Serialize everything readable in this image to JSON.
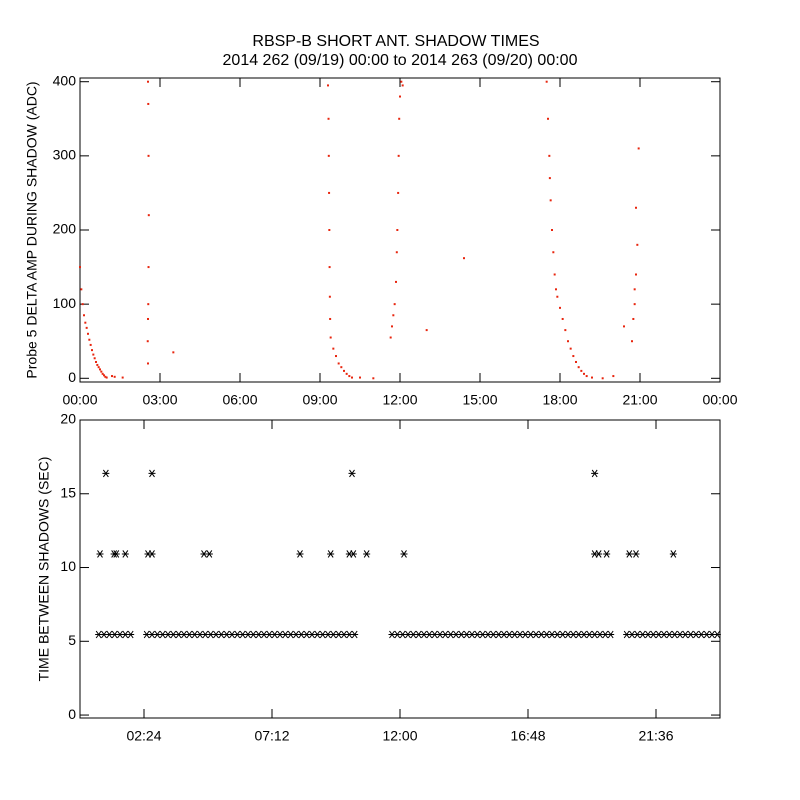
{
  "chart_data": [
    {
      "type": "scatter",
      "title": "RBSP-B SHORT ANT. SHADOW TIMES",
      "subtitle": "2014 262 (09/19) 00:00 to 2014 263 (09/20) 00:00",
      "y_label": "Probe 5 DELTA AMP DURING SHADOW (ADC)",
      "marker": "dot",
      "color": "#e8250e",
      "xlim": [
        0,
        24
      ],
      "ylim": [
        -5,
        405
      ],
      "xticks": [
        {
          "value": 0,
          "label": "00:00"
        },
        {
          "value": 3,
          "label": "03:00"
        },
        {
          "value": 6,
          "label": "06:00"
        },
        {
          "value": 9,
          "label": "09:00"
        },
        {
          "value": 12,
          "label": "12:00"
        },
        {
          "value": 15,
          "label": "15:00"
        },
        {
          "value": 18,
          "label": "18:00"
        },
        {
          "value": 21,
          "label": "21:00"
        },
        {
          "value": 24,
          "label": "00:00"
        }
      ],
      "yticks": [
        0,
        100,
        200,
        300,
        400
      ],
      "x": [
        0.0,
        0.05,
        0.1,
        0.15,
        0.2,
        0.25,
        0.3,
        0.35,
        0.4,
        0.45,
        0.5,
        0.55,
        0.6,
        0.65,
        0.7,
        0.75,
        0.8,
        0.85,
        0.9,
        0.95,
        1.0,
        1.2,
        1.3,
        1.6,
        2.55,
        2.56,
        2.57,
        2.58,
        2.57,
        2.56,
        2.55,
        2.54,
        2.55,
        3.5,
        9.3,
        9.32,
        9.33,
        9.34,
        9.35,
        9.36,
        9.37,
        9.38,
        9.4,
        9.5,
        9.6,
        9.7,
        9.8,
        9.9,
        10.0,
        10.1,
        10.2,
        10.5,
        11.0,
        11.65,
        11.7,
        11.75,
        11.8,
        11.85,
        11.88,
        11.9,
        11.93,
        11.95,
        11.97,
        12.0,
        12.05,
        12.1,
        13.0,
        14.4,
        17.5,
        17.55,
        17.6,
        17.62,
        17.65,
        17.7,
        17.75,
        17.8,
        17.85,
        17.9,
        18.0,
        18.1,
        18.2,
        18.3,
        18.4,
        18.5,
        18.6,
        18.7,
        18.8,
        18.9,
        19.0,
        19.2,
        19.6,
        20.0,
        20.4,
        20.7,
        20.75,
        20.8,
        20.85,
        20.9,
        20.85,
        20.95,
        20.8
      ],
      "values": [
        150,
        120,
        100,
        85,
        75,
        68,
        60,
        52,
        45,
        38,
        32,
        27,
        22,
        18,
        15,
        12,
        9,
        6,
        4,
        2,
        1,
        3,
        2,
        1,
        400,
        370,
        300,
        220,
        150,
        100,
        80,
        50,
        20,
        35,
        395,
        350,
        300,
        250,
        200,
        150,
        110,
        80,
        55,
        40,
        30,
        20,
        15,
        10,
        6,
        3,
        1,
        1,
        0,
        55,
        70,
        85,
        100,
        130,
        170,
        200,
        250,
        300,
        350,
        380,
        400,
        395,
        65,
        162,
        400,
        350,
        300,
        270,
        240,
        200,
        170,
        140,
        120,
        110,
        95,
        80,
        65,
        50,
        40,
        30,
        22,
        15,
        10,
        6,
        3,
        1,
        0,
        3,
        70,
        50,
        80,
        100,
        140,
        180,
        230,
        310,
        120
      ]
    },
    {
      "type": "scatter",
      "y_label": "TIME BETWEEN SHADOWS (SEC)",
      "marker": "asterisk",
      "color": "#000000",
      "xlim": [
        0,
        24
      ],
      "ylim": [
        -0.2,
        20
      ],
      "xticks": [
        {
          "value": 2.4,
          "label": "02:24"
        },
        {
          "value": 7.2,
          "label": "07:12"
        },
        {
          "value": 12,
          "label": "12:00"
        },
        {
          "value": 16.8,
          "label": "16:48"
        },
        {
          "value": 21.6,
          "label": "21:36"
        }
      ],
      "yticks": [
        0,
        5,
        10,
        15,
        20
      ],
      "x": [
        0.7,
        0.9,
        1.1,
        1.3,
        1.5,
        1.7,
        1.9,
        2.5,
        2.7,
        2.9,
        3.1,
        3.3,
        3.5,
        3.7,
        3.9,
        4.1,
        4.3,
        4.5,
        4.7,
        4.9,
        5.1,
        5.3,
        5.5,
        5.7,
        5.9,
        6.1,
        6.3,
        6.5,
        6.7,
        6.9,
        7.1,
        7.3,
        7.5,
        7.7,
        7.9,
        8.1,
        8.3,
        8.5,
        8.7,
        8.9,
        9.1,
        9.3,
        9.5,
        9.7,
        9.9,
        10.1,
        10.3,
        11.7,
        11.9,
        12.1,
        12.3,
        12.5,
        12.7,
        12.9,
        13.1,
        13.3,
        13.5,
        13.7,
        13.9,
        14.1,
        14.3,
        14.5,
        14.7,
        14.9,
        15.1,
        15.3,
        15.5,
        15.7,
        15.9,
        16.1,
        16.3,
        16.5,
        16.7,
        16.9,
        17.1,
        17.3,
        17.5,
        17.7,
        17.9,
        18.1,
        18.3,
        18.5,
        18.7,
        18.9,
        19.1,
        19.3,
        19.5,
        19.7,
        19.9,
        20.5,
        20.7,
        20.9,
        21.1,
        21.3,
        21.5,
        21.7,
        21.9,
        22.1,
        22.3,
        22.5,
        22.7,
        22.9,
        23.1,
        23.3,
        23.5,
        23.7,
        23.9,
        0.75,
        1.28,
        1.36,
        1.7,
        2.55,
        2.7,
        4.65,
        4.85,
        8.25,
        9.4,
        10.1,
        10.25,
        10.75,
        12.15,
        19.3,
        19.45,
        19.75,
        20.6,
        20.85,
        22.25,
        0.97,
        2.7,
        10.2,
        19.3
      ],
      "values": [
        5.46,
        5.46,
        5.46,
        5.46,
        5.46,
        5.46,
        5.46,
        5.46,
        5.46,
        5.46,
        5.46,
        5.46,
        5.46,
        5.46,
        5.46,
        5.46,
        5.46,
        5.46,
        5.46,
        5.46,
        5.46,
        5.46,
        5.46,
        5.46,
        5.46,
        5.46,
        5.46,
        5.46,
        5.46,
        5.46,
        5.46,
        5.46,
        5.46,
        5.46,
        5.46,
        5.46,
        5.46,
        5.46,
        5.46,
        5.46,
        5.46,
        5.46,
        5.46,
        5.46,
        5.46,
        5.46,
        5.46,
        5.46,
        5.46,
        5.46,
        5.46,
        5.46,
        5.46,
        5.46,
        5.46,
        5.46,
        5.46,
        5.46,
        5.46,
        5.46,
        5.46,
        5.46,
        5.46,
        5.46,
        5.46,
        5.46,
        5.46,
        5.46,
        5.46,
        5.46,
        5.46,
        5.46,
        5.46,
        5.46,
        5.46,
        5.46,
        5.46,
        5.46,
        5.46,
        5.46,
        5.46,
        5.46,
        5.46,
        5.46,
        5.46,
        5.46,
        5.46,
        5.46,
        5.46,
        5.46,
        5.46,
        5.46,
        5.46,
        5.46,
        5.46,
        5.46,
        5.46,
        5.46,
        5.46,
        5.46,
        5.46,
        5.46,
        5.46,
        5.46,
        5.46,
        5.46,
        5.46,
        10.92,
        10.92,
        10.92,
        10.92,
        10.92,
        10.92,
        10.92,
        10.92,
        10.92,
        10.92,
        10.92,
        10.92,
        10.92,
        10.92,
        10.92,
        10.92,
        10.92,
        10.92,
        10.92,
        10.92,
        16.38,
        16.38,
        16.38,
        16.38
      ]
    }
  ]
}
